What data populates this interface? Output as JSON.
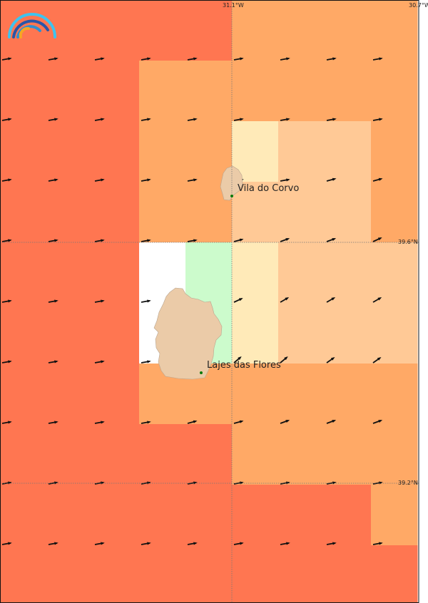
{
  "map": {
    "palette": {
      "R": "#ff7651",
      "O": "#ffa966",
      "L": "#ffc996",
      "C": "#ffeab8",
      "G": "#ccfbcc",
      "W": "#ffffff"
    },
    "cells": [
      "RRRRROOOO",
      "RRROOOOOO",
      "RRROOCLLO",
      "RRROOLLLO",
      "RRRWGCLLL",
      "RRRWGCLLL",
      "RRROOOOOO",
      "RRRRROOOO",
      "RRRRRRRRO",
      "RRRRRRRRR"
    ],
    "wind_arrow_direction_deg": [
      [
        80,
        80,
        80,
        80,
        80,
        80,
        80,
        80,
        80
      ],
      [
        80,
        80,
        80,
        80,
        80,
        80,
        80,
        80,
        80
      ],
      [
        80,
        80,
        80,
        80,
        80,
        80,
        80,
        75,
        75
      ],
      [
        80,
        80,
        80,
        80,
        80,
        75,
        70,
        70,
        65
      ],
      [
        80,
        80,
        80,
        80,
        80,
        65,
        60,
        60,
        60
      ],
      [
        80,
        80,
        80,
        80,
        55,
        50,
        50,
        55,
        55
      ],
      [
        80,
        80,
        80,
        80,
        75,
        75,
        70,
        70,
        70
      ],
      [
        80,
        80,
        80,
        80,
        80,
        80,
        80,
        80,
        80
      ],
      [
        80,
        80,
        80,
        80,
        80,
        80,
        80,
        80,
        80
      ],
      [
        80,
        80,
        80,
        80,
        80,
        80,
        80,
        80,
        80
      ]
    ],
    "land_color": "#ebcba8",
    "city_dot_color": "#0a7a0a",
    "longitude_labels": [
      "31.1°W",
      "30.7°W"
    ],
    "latitude_labels": [
      "39.6°N",
      "39.2°N"
    ],
    "cities": [
      {
        "name": "Vila do Corvo"
      },
      {
        "name": "Lajes das Flores"
      }
    ],
    "islands": [
      "Corvo",
      "Flores"
    ]
  }
}
